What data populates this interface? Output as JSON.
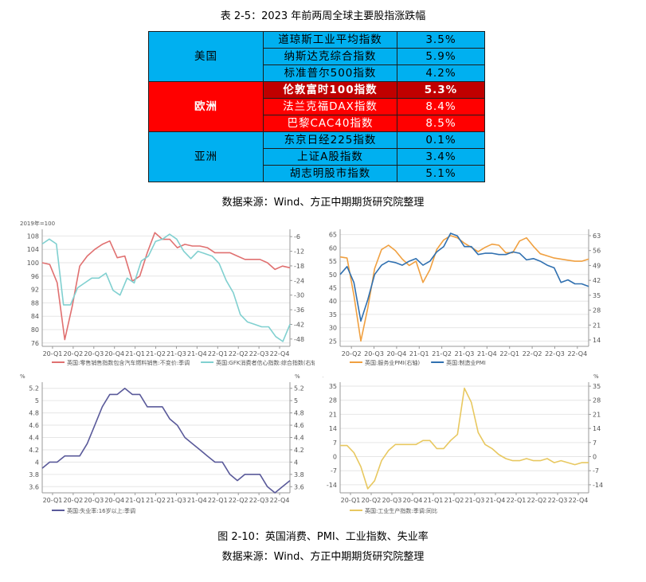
{
  "table": {
    "title": "表 2-5：2023 年前两周全球主要股指涨跌幅",
    "source": "数据来源：Wind、方正中期期货研究院整理",
    "groups": [
      {
        "region": "美国",
        "rows": [
          {
            "name": "道琼斯工业平均指数",
            "value": "3.5%"
          },
          {
            "name": "纳斯达克综合指数",
            "value": "5.9%"
          },
          {
            "name": "标准普尔500指数",
            "value": "4.2%"
          }
        ]
      },
      {
        "region": "欧洲",
        "rows": [
          {
            "name": "伦敦富时100指数",
            "value": "5.3%"
          },
          {
            "name": "法兰克福DAX指数",
            "value": "8.4%"
          },
          {
            "name": "巴黎CAC40指数",
            "value": "8.5%"
          }
        ]
      },
      {
        "region": "亚洲",
        "rows": [
          {
            "name": "东京日经225指数",
            "value": "0.1%"
          },
          {
            "name": "上证A股指数",
            "value": "3.4%"
          },
          {
            "name": "胡志明股市指数",
            "value": "5.1%"
          }
        ]
      }
    ]
  },
  "figure": {
    "caption": "图 2-10：英国消费、PMI、工业指数、失业率",
    "source": "数据来源：Wind、方正中期期货研究院整理"
  },
  "chart_data": [
    {
      "type": "line",
      "x_ticks": [
        "20-Q1",
        "20-Q2",
        "20-Q3",
        "20-Q4",
        "21-Q1",
        "21-Q2",
        "21-Q3",
        "21-Q4",
        "22-Q1",
        "22-Q2",
        "22-Q3",
        "22-Q4"
      ],
      "left_unit": "2019年=100",
      "yleft_ticks": [
        108,
        104,
        100,
        96,
        92,
        88,
        84,
        80,
        76
      ],
      "yleft_lim": [
        75,
        110
      ],
      "yright_ticks": [
        -6,
        -12,
        -18,
        -24,
        -30,
        -36,
        -42,
        -48
      ],
      "yright_lim": [
        -51,
        -3
      ],
      "legend_position": "bottom",
      "series": [
        {
          "name": "英国:零售销售指数包含汽车燃料销售:不变价:季调",
          "axis": "left",
          "color": "#e07070",
          "values": [
            100,
            99.5,
            94,
            77,
            87,
            99,
            102,
            104,
            105.5,
            106.5,
            101.5,
            102,
            94.5,
            96,
            103,
            109,
            107,
            107,
            104.5,
            105.5,
            105,
            105,
            104.5,
            103,
            103,
            103,
            102,
            101,
            101,
            101,
            100,
            98,
            99,
            98.5
          ]
        },
        {
          "name": "英国:GFK消费者信心指数:综合指数(右轴)",
          "axis": "right",
          "color": "#80d0d0",
          "values": [
            -9,
            -7,
            -9,
            -34,
            -34,
            -27,
            -25,
            -23,
            -23,
            -21,
            -28,
            -30,
            -23,
            -25,
            -16,
            -14,
            -8,
            -7,
            -5,
            -7,
            -12,
            -15,
            -12,
            -13,
            -14,
            -17,
            -24,
            -29,
            -38,
            -41,
            -42,
            -43,
            -43,
            -47,
            -49,
            -42
          ]
        }
      ]
    },
    {
      "type": "line",
      "x_ticks": [
        "20-Q2",
        "20-Q3",
        "20-Q4",
        "21-Q1",
        "21-Q2",
        "21-Q3",
        "21-Q4",
        "22-Q1",
        "22-Q2",
        "22-Q3",
        "22-Q4"
      ],
      "yleft_ticks": [
        65,
        60,
        55,
        50,
        45,
        40,
        35,
        30,
        25
      ],
      "yleft_lim": [
        23,
        67
      ],
      "yright_ticks": [
        63,
        56,
        49,
        42,
        35,
        28,
        21,
        14
      ],
      "yright_lim": [
        11,
        66
      ],
      "legend_position": "bottom",
      "series": [
        {
          "name": "英国:服务业PMI(右轴)",
          "axis": "right",
          "color": "#f0a040",
          "values": [
            53,
            52.5,
            35,
            13.5,
            29,
            47.5,
            56.5,
            58.5,
            56,
            52,
            49,
            51,
            41,
            47,
            56.5,
            61,
            63,
            62,
            59.5,
            57.5,
            55.5,
            57.5,
            59,
            58.5,
            55,
            55,
            60.5,
            62,
            58,
            54.5,
            53.5,
            52.5,
            52,
            51.5,
            51,
            51,
            52
          ]
        },
        {
          "name": "英国:制造业PMI",
          "axis": "left",
          "color": "#3070b0",
          "values": [
            50,
            53,
            47,
            32.5,
            40.5,
            50,
            53.5,
            55,
            54.5,
            53.5,
            55,
            56,
            53.5,
            55,
            58.5,
            60.5,
            65.5,
            64.5,
            60.5,
            60.5,
            57.5,
            58,
            58,
            57.5,
            57.5,
            58.5,
            58,
            55.5,
            56,
            55,
            53.5,
            52.5,
            47,
            48,
            46.5,
            46.5,
            45.5
          ]
        }
      ]
    },
    {
      "type": "line",
      "x_ticks": [
        "20-Q1",
        "20-Q2",
        "20-Q3",
        "20-Q4",
        "21-Q1",
        "21-Q2",
        "21-Q3",
        "21-Q4",
        "22-Q1",
        "22-Q2",
        "22-Q3",
        "22-Q4"
      ],
      "left_unit": "%",
      "right_unit": "%",
      "yleft_ticks": [
        5.2,
        5,
        4.8,
        4.6,
        4.4,
        4.2,
        4,
        3.8,
        3.6
      ],
      "yleft_lim": [
        3.5,
        5.3
      ],
      "yright_ticks": [
        5.2,
        5,
        4.8,
        4.6,
        4.4,
        4.2,
        4,
        3.8,
        3.6
      ],
      "yright_lim": [
        3.5,
        5.3
      ],
      "legend_position": "bottom",
      "series": [
        {
          "name": "英国:失业率:16岁以上:季调",
          "axis": "left",
          "color": "#5a5a9a",
          "values": [
            3.9,
            4,
            4,
            4.1,
            4.1,
            4.1,
            4.3,
            4.6,
            4.9,
            5.1,
            5.1,
            5.2,
            5.1,
            5.1,
            4.9,
            4.9,
            4.9,
            4.7,
            4.6,
            4.4,
            4.3,
            4.2,
            4.1,
            4,
            4,
            3.8,
            3.7,
            3.8,
            3.8,
            3.8,
            3.6,
            3.5,
            3.6,
            3.7
          ]
        }
      ]
    },
    {
      "type": "line",
      "x_ticks": [
        "20-Q1",
        "20-Q2",
        "20-Q3",
        "20-Q4",
        "21-Q1",
        "21-Q2",
        "21-Q3",
        "21-Q4",
        "22-Q1",
        "22-Q2",
        "22-Q3",
        "22-Q4"
      ],
      "left_unit": "%",
      "right_unit": "%",
      "yleft_ticks": [
        35,
        28,
        21,
        14,
        7,
        0,
        -7,
        -14
      ],
      "yleft_lim": [
        -18,
        37
      ],
      "yright_ticks": [
        35,
        28,
        21,
        14,
        7,
        0,
        -7,
        -14
      ],
      "yright_lim": [
        -18,
        37
      ],
      "legend_position": "bottom",
      "series": [
        {
          "name": "英国:工业生产指数:季调:同比",
          "axis": "left",
          "color": "#e8c860",
          "values": [
            5.5,
            5.5,
            2,
            -5,
            -16,
            -12,
            -2,
            3,
            6,
            6,
            6,
            6,
            8,
            8,
            4,
            4,
            8,
            11,
            34,
            27,
            12,
            6,
            4,
            1,
            -1,
            -2,
            -2,
            -1,
            -2,
            -2,
            -1,
            -3,
            -2,
            -3,
            -4,
            -3,
            -3
          ]
        }
      ]
    }
  ]
}
